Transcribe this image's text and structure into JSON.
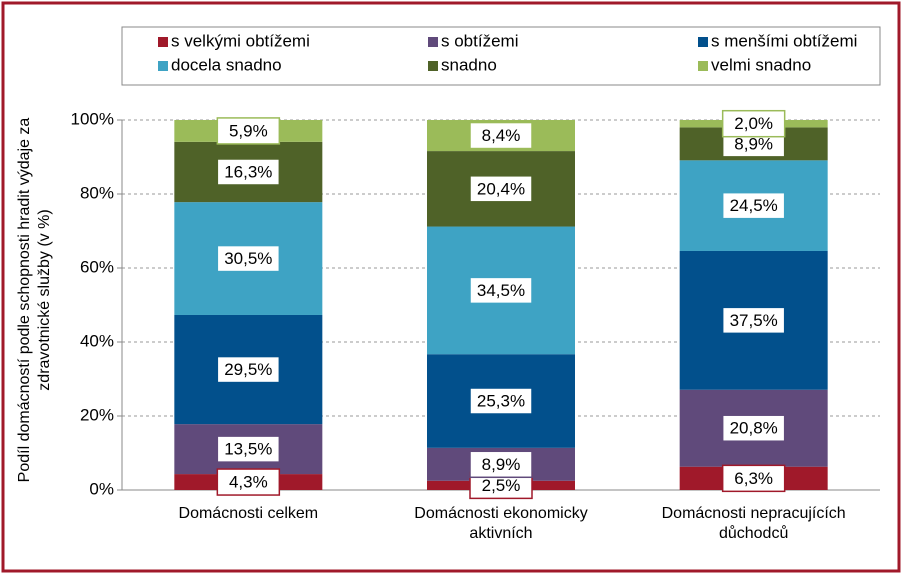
{
  "chart_data": {
    "type": "stacked_bar",
    "y_label": "Podíl domácností podle schopnosti hradit výdaje za zdravotnické služby (v %)",
    "categories": [
      "Domácnosti celkem",
      "Domácnosti ekonomicky aktivních",
      "Domácnosti nepracujících důchodců"
    ],
    "series": [
      {
        "name": "s velkými obtížemi",
        "color": "#a0192a",
        "values": [
          4.3,
          2.5,
          6.3
        ],
        "value_labels": [
          "4,3%",
          "2,5%",
          "6,3%"
        ]
      },
      {
        "name": "s obtížemi",
        "color": "#604a7b",
        "values": [
          13.5,
          8.9,
          20.8
        ],
        "value_labels": [
          "13,5%",
          "8,9%",
          "20,8%"
        ]
      },
      {
        "name": "s menšími obtížemi",
        "color": "#02508c",
        "values": [
          29.5,
          25.3,
          37.5
        ],
        "value_labels": [
          "29,5%",
          "25,3%",
          "37,5%"
        ]
      },
      {
        "name": "docela snadno",
        "color": "#3ea3c4",
        "values": [
          30.5,
          34.5,
          24.5
        ],
        "value_labels": [
          "30,5%",
          "34,5%",
          "24,5%"
        ]
      },
      {
        "name": "snadno",
        "color": "#4f6228",
        "values": [
          16.3,
          20.4,
          8.9
        ],
        "value_labels": [
          "16,3%",
          "20,4%",
          "8,9%"
        ]
      },
      {
        "name": "velmi snadno",
        "color": "#9bbb59",
        "values": [
          5.9,
          8.4,
          2.0
        ],
        "value_labels": [
          "5,9%",
          "8,4%",
          "2,0%"
        ]
      }
    ],
    "ylim": [
      0,
      100
    ],
    "yticks": [
      {
        "value": 0,
        "label": "0%"
      },
      {
        "value": 20,
        "label": "20%"
      },
      {
        "value": 40,
        "label": "40%"
      },
      {
        "value": 60,
        "label": "60%"
      },
      {
        "value": 80,
        "label": "80%"
      },
      {
        "value": 100,
        "label": "100%"
      }
    ],
    "grid": true,
    "legend": "top"
  }
}
